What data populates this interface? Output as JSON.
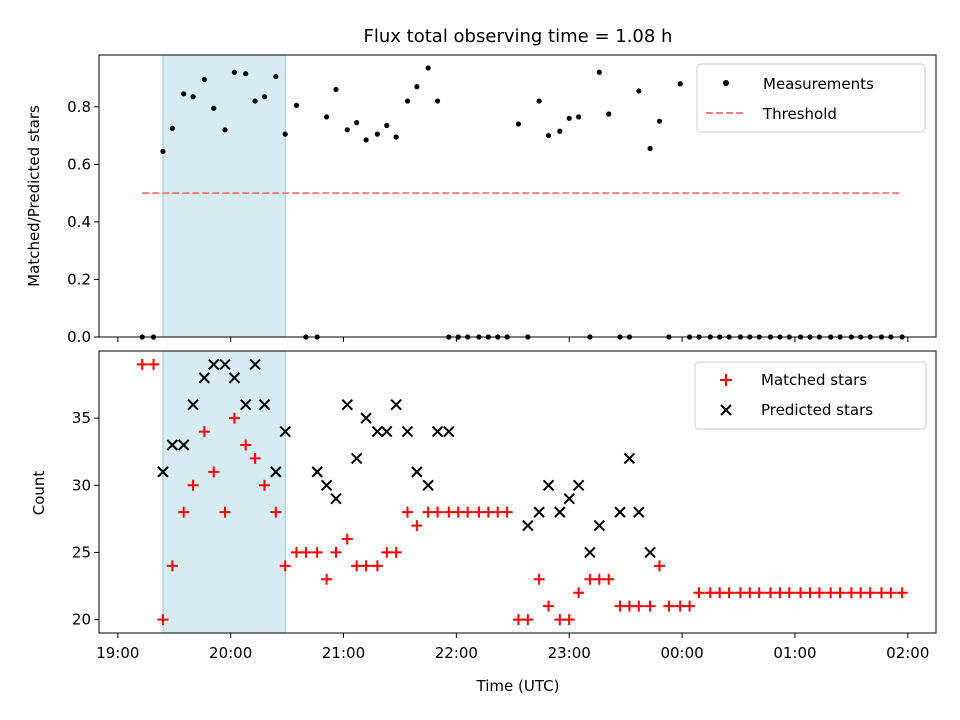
{
  "chart_data": [
    {
      "type": "scatter",
      "title": "Flux total observing time = 1.08 h",
      "xlabel": "",
      "ylabel": "Matched/Predicted stars",
      "ylim": [
        0,
        0.98
      ],
      "yticks": [
        "0.0",
        "0.2",
        "0.4",
        "0.6",
        "0.8"
      ],
      "xlim": [
        "18:50",
        "02:15"
      ],
      "highlight_span": [
        "19:24",
        "20:29"
      ],
      "legend": {
        "placement": "top-right",
        "entries": [
          "Measurements",
          "Threshold"
        ]
      },
      "series": [
        {
          "name": "Measurements",
          "color": "#000000",
          "marker": "dot",
          "x": [
            "19:13",
            "19:19",
            "19:24",
            "19:29",
            "19:35",
            "19:40",
            "19:46",
            "19:51",
            "19:57",
            "20:02",
            "20:08",
            "20:13",
            "20:18",
            "20:24",
            "20:29",
            "20:35",
            "20:40",
            "20:46",
            "20:51",
            "20:56",
            "21:02",
            "21:07",
            "21:12",
            "21:18",
            "21:23",
            "21:28",
            "21:34",
            "21:39",
            "21:45",
            "21:50",
            "21:56",
            "22:01",
            "22:06",
            "22:12",
            "22:17",
            "22:22",
            "22:27",
            "22:33",
            "22:38",
            "22:44",
            "22:49",
            "22:55",
            "23:00",
            "23:05",
            "23:11",
            "23:16",
            "23:21",
            "23:27",
            "23:32",
            "23:37",
            "23:43",
            "23:48",
            "23:53",
            "23:59",
            "00:04",
            "00:09",
            "00:15",
            "00:20",
            "00:25",
            "00:31",
            "00:36",
            "00:41",
            "00:47",
            "00:52",
            "00:57",
            "01:03",
            "01:08",
            "01:13",
            "01:19",
            "01:24",
            "01:30",
            "01:35",
            "01:40",
            "01:46",
            "01:51",
            "01:57"
          ],
          "y": [
            0,
            0,
            0.645,
            0.725,
            0.845,
            0.835,
            0.895,
            0.795,
            0.72,
            0.92,
            0.915,
            0.82,
            0.835,
            0.905,
            0.705,
            0.805,
            0,
            0,
            0.765,
            0.86,
            0.72,
            0.745,
            0.685,
            0.705,
            0.735,
            0.695,
            0.82,
            0.87,
            0.935,
            0.82,
            0,
            0,
            0,
            0,
            0,
            0,
            0,
            0.74,
            0,
            0.82,
            0.7,
            0.715,
            0.76,
            0.765,
            0,
            0.92,
            0.775,
            0,
            0,
            0.855,
            0.655,
            0.75,
            0,
            0.88,
            0,
            0,
            0,
            0,
            0,
            0,
            0,
            0,
            0,
            0,
            0,
            0,
            0,
            0,
            0,
            0,
            0,
            0,
            0,
            0,
            0,
            0
          ]
        },
        {
          "name": "Threshold",
          "color": "#f08080",
          "line": "dashed",
          "x": [
            "19:13",
            "01:57"
          ],
          "y": [
            0.5,
            0.5
          ]
        }
      ]
    },
    {
      "type": "scatter",
      "title": "",
      "xlabel": "Time (UTC)",
      "ylabel": "Count",
      "ylim": [
        19,
        40
      ],
      "yticks": [
        "20",
        "25",
        "30",
        "35"
      ],
      "xticks": [
        "19:00",
        "20:00",
        "21:00",
        "22:00",
        "23:00",
        "00:00",
        "01:00",
        "02:00"
      ],
      "xlim": [
        "18:50",
        "02:15"
      ],
      "highlight_span": [
        "19:24",
        "20:29"
      ],
      "legend": {
        "placement": "top-right",
        "entries": [
          "Matched stars",
          "Predicted stars"
        ]
      },
      "series": [
        {
          "name": "Matched stars",
          "color": "#ff0000",
          "marker": "plus",
          "x": [
            "19:13",
            "19:19",
            "19:24",
            "19:29",
            "19:35",
            "19:40",
            "19:46",
            "19:51",
            "19:57",
            "20:02",
            "20:08",
            "20:13",
            "20:18",
            "20:24",
            "20:29",
            "20:35",
            "20:40",
            "20:46",
            "20:51",
            "20:56",
            "21:02",
            "21:07",
            "21:12",
            "21:18",
            "21:23",
            "21:28",
            "21:34",
            "21:39",
            "21:45",
            "21:50",
            "21:56",
            "22:01",
            "22:06",
            "22:12",
            "22:17",
            "22:22",
            "22:27",
            "22:33",
            "22:38",
            "22:44",
            "22:49",
            "22:55",
            "23:00",
            "23:05",
            "23:11",
            "23:16",
            "23:21",
            "23:27",
            "23:32",
            "23:37",
            "23:43",
            "23:48",
            "23:53",
            "23:59",
            "00:04",
            "00:09",
            "00:15",
            "00:20",
            "00:25",
            "00:31",
            "00:36",
            "00:41",
            "00:47",
            "00:52",
            "00:57",
            "01:03",
            "01:08",
            "01:13",
            "01:19",
            "01:24",
            "01:30",
            "01:35",
            "01:40",
            "01:46",
            "01:51",
            "01:57"
          ],
          "y": [
            39,
            39,
            20,
            24,
            28,
            30,
            34,
            31,
            28,
            35,
            33,
            32,
            30,
            28,
            24,
            25,
            25,
            25,
            23,
            25,
            26,
            24,
            24,
            24,
            25,
            25,
            28,
            27,
            28,
            28,
            28,
            28,
            28,
            28,
            28,
            28,
            28,
            20,
            20,
            23,
            21,
            20,
            20,
            22,
            23,
            23,
            23,
            21,
            21,
            21,
            21,
            24,
            21,
            21,
            21,
            22,
            22,
            22,
            22,
            22,
            22,
            22,
            22,
            22,
            22,
            22,
            22,
            22,
            22,
            22,
            22,
            22,
            22,
            22,
            22,
            22
          ]
        },
        {
          "name": "Predicted stars",
          "color": "#000000",
          "marker": "x",
          "x": [
            "19:24",
            "19:29",
            "19:35",
            "19:40",
            "19:46",
            "19:51",
            "19:57",
            "20:02",
            "20:08",
            "20:13",
            "20:18",
            "20:24",
            "20:29",
            "20:46",
            "20:51",
            "20:56",
            "21:02",
            "21:07",
            "21:12",
            "21:18",
            "21:23",
            "21:28",
            "21:34",
            "21:39",
            "21:45",
            "21:50",
            "21:56",
            "22:38",
            "22:44",
            "22:49",
            "22:55",
            "23:00",
            "23:05",
            "23:11",
            "23:16",
            "23:27",
            "23:32",
            "23:37",
            "23:43"
          ],
          "y": [
            31,
            33,
            33,
            36,
            38,
            39,
            39,
            38,
            36,
            39,
            36,
            31,
            34,
            31,
            30,
            29,
            36,
            32,
            35,
            34,
            34,
            36,
            34,
            31,
            30,
            34,
            34,
            27,
            28,
            30,
            28,
            29,
            30,
            25,
            27,
            28,
            32,
            28,
            25
          ]
        }
      ]
    }
  ]
}
